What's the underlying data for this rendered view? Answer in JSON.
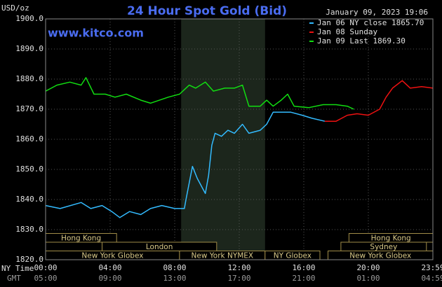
{
  "chart_data": {
    "type": "line",
    "title": "24 Hour Spot Gold (Bid)",
    "timestamp": "January 09, 2023 19:06",
    "website": "www.kitco.com",
    "y_axis_label": "USD/oz",
    "x_axis_label": "NY Time",
    "x2_axis_label": "GMT",
    "xlim": [
      0,
      24
    ],
    "ylim": [
      1820,
      1900
    ],
    "yticks": [
      {
        "value": 1820,
        "label": "1820.0"
      },
      {
        "value": 1830,
        "label": "1830.0"
      },
      {
        "value": 1840,
        "label": "1840.0"
      },
      {
        "value": 1850,
        "label": "1850.0"
      },
      {
        "value": 1860,
        "label": "1860.0"
      },
      {
        "value": 1870,
        "label": "1870.0"
      },
      {
        "value": 1880,
        "label": "1880.0"
      },
      {
        "value": 1890,
        "label": "1890.0"
      },
      {
        "value": 1900,
        "label": "1900.0"
      }
    ],
    "xticks": [
      {
        "value": 0,
        "label": "00:00"
      },
      {
        "value": 4,
        "label": "04:00"
      },
      {
        "value": 8,
        "label": "08:00"
      },
      {
        "value": 12,
        "label": "12:00"
      },
      {
        "value": 16,
        "label": "16:00"
      },
      {
        "value": 20,
        "label": "20:00"
      },
      {
        "value": 24,
        "label": "23:59"
      }
    ],
    "x2_tick_labels": [
      "05:00",
      "09:00",
      "13:00",
      "17:00",
      "21:00",
      "01:00",
      "04:59"
    ],
    "grid": true,
    "legend": "top-right",
    "highlight": {
      "start": 8.4,
      "end": 13.6,
      "color": "#1c261c"
    },
    "series": [
      {
        "name": "Jan 06 NY close 1865.70",
        "color": "#33bbff",
        "x": [
          0,
          0.9,
          2.2,
          2.8,
          3.5,
          4.1,
          4.6,
          5.2,
          5.9,
          6.5,
          7.2,
          8.0,
          8.6,
          8.7,
          9.1,
          9.4,
          9.8,
          9.9,
          10.1,
          10.3,
          10.5,
          10.9,
          11.3,
          11.7,
          12.2,
          12.6,
          13.3,
          13.7,
          14.1,
          14.6,
          15.2,
          15.9,
          16.5,
          17.3
        ],
        "values": [
          1838,
          1837,
          1839,
          1837,
          1838,
          1836,
          1834,
          1836,
          1835,
          1837,
          1838,
          1837,
          1837,
          1840,
          1851,
          1847,
          1843,
          1842,
          1848,
          1858,
          1862,
          1861,
          1863,
          1862,
          1865,
          1862,
          1863,
          1865,
          1869,
          1869,
          1869,
          1868,
          1867,
          1866
        ]
      },
      {
        "name": "Jan 08 Sunday",
        "color": "#ee1111",
        "x": [
          17.3,
          18.0,
          18.7,
          19.3,
          20.0,
          20.7,
          21.1,
          21.5,
          22.1,
          22.6,
          23.3,
          24.0
        ],
        "values": [
          1866,
          1866,
          1868,
          1868.5,
          1868,
          1870,
          1874,
          1877,
          1879.5,
          1877,
          1877.5,
          1877
        ]
      },
      {
        "name": "Jan 09 Last 1869.30",
        "color": "#11dd11",
        "x": [
          0,
          0.7,
          1.5,
          2.2,
          2.5,
          3.0,
          3.7,
          4.3,
          5.0,
          5.9,
          6.5,
          7.6,
          8.3,
          8.9,
          9.3,
          9.9,
          10.4,
          11.1,
          11.7,
          12.2,
          12.6,
          13.3,
          13.7,
          14.1,
          14.6,
          15.0,
          15.4,
          16.3,
          17.2,
          18.0,
          18.7,
          19.1
        ],
        "values": [
          1876,
          1878,
          1879,
          1878,
          1880.5,
          1875,
          1875,
          1874,
          1875,
          1873,
          1872,
          1874,
          1875,
          1878,
          1877,
          1879,
          1876,
          1877,
          1877,
          1878,
          1871,
          1871,
          1873,
          1871,
          1873,
          1875,
          1871,
          1870.5,
          1871.5,
          1871.5,
          1871,
          1870
        ]
      }
    ],
    "session_rows": [
      [
        {
          "label": "Hong Kong",
          "start": 0,
          "end": 4.4
        },
        {
          "label": "Hong Kong",
          "start": 18.8,
          "end": 24
        }
      ],
      [
        {
          "label": "London",
          "start": 3.5,
          "end": 10.6
        },
        {
          "label": "Sydney",
          "start": 18.3,
          "end": 23.6
        }
      ],
      [
        {
          "label": "New York Globex",
          "start": 0,
          "end": 8.3
        },
        {
          "label": "New York NYMEX",
          "start": 8.3,
          "end": 13.6
        },
        {
          "label": "NY Globex",
          "start": 13.6,
          "end": 17.0
        },
        {
          "label": "New York Globex",
          "start": 17.5,
          "end": 24
        }
      ]
    ]
  }
}
